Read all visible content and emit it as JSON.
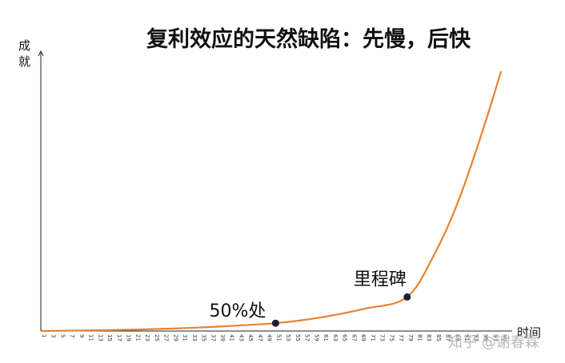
{
  "chart_data": {
    "type": "line",
    "title": "复利效应的天然缺陷：先慢，后快",
    "ylabel_line1": "成",
    "ylabel_line2": "就",
    "xlabel": "时间",
    "x_range": [
      1,
      100
    ],
    "tick_start": 1,
    "tick_step": 2,
    "ylim": [
      0,
      1
    ],
    "series": [
      {
        "color": "#e8822e",
        "x": [
          1,
          10,
          20,
          30,
          40,
          51,
          60,
          70,
          79,
          85,
          90,
          95,
          99
        ],
        "y": [
          0.0,
          0.002,
          0.005,
          0.01,
          0.018,
          0.03,
          0.05,
          0.085,
          0.13,
          0.3,
          0.5,
          0.76,
          0.99
        ]
      }
    ],
    "annotations": [
      {
        "label": "50%处",
        "x": 51,
        "y": 0.03
      },
      {
        "label": "里程碑",
        "x": 79,
        "y": 0.13
      }
    ]
  },
  "watermark": "知乎 @谢春霖"
}
